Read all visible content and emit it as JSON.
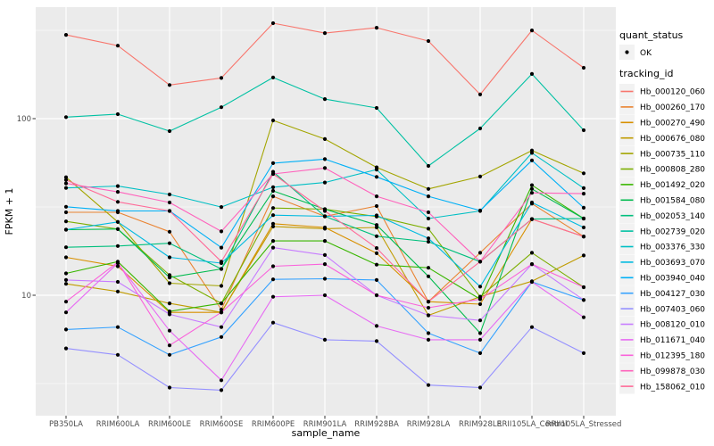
{
  "panel": {
    "background": "#EBEBEB",
    "grid_color": "#FFFFFF",
    "point_color": "#000000",
    "legend_key_fill": "#F2F2F2",
    "tick_color": "#333333",
    "tick_text_color": "#4D4D4D"
  },
  "legend": {
    "quant_status_title": "quant_status",
    "quant_status_items": [
      {
        "label": "OK",
        "marker": "point-icon"
      }
    ],
    "tracking_title": "tracking_id"
  },
  "chart_data": {
    "type": "line",
    "title": "",
    "xlabel": "sample_name",
    "ylabel": "FPKM + 1",
    "y_scale": "log10",
    "y_ticks": [
      100,
      10
    ],
    "y_minor_ticks": [
      316.2,
      31.62,
      3.162
    ],
    "ylim": [
      2.08,
      427
    ],
    "grid": true,
    "legend_position": "right",
    "x_categories": [
      "PB350LA",
      "RRIM600LA",
      "RRIM600LE",
      "RRIM600SE",
      "RRIM600PE",
      "RRIM901LA",
      "RRIM928BA",
      "RRIM928LA",
      "RRIM928LE",
      "RRII105LA_Control",
      "RRII105LA_Stressed"
    ],
    "series": [
      {
        "name": "Hb_000120_060",
        "color": "#F8766D",
        "values": [
          298,
          259,
          155,
          170,
          347,
          305,
          327,
          275,
          137,
          316,
          194
        ]
      },
      {
        "name": "Hb_000260_170",
        "color": "#EA8331",
        "values": [
          29.5,
          29.5,
          22.9,
          8.3,
          36.3,
          28,
          32,
          9.2,
          17.4,
          33,
          21.5
        ]
      },
      {
        "name": "Hb_000270_490",
        "color": "#D89000",
        "values": [
          16.4,
          14.6,
          8.0,
          8.0,
          25.4,
          24.2,
          17.3,
          9.2,
          8.9,
          27,
          21.5
        ]
      },
      {
        "name": "Hb_000676_080",
        "color": "#C09B00",
        "values": [
          11.6,
          10.5,
          9.0,
          8.0,
          24.5,
          23.8,
          24.2,
          7.7,
          9.8,
          12,
          16.8
        ]
      },
      {
        "name": "Hb_000735_110",
        "color": "#A3A500",
        "values": [
          46.6,
          26,
          11.7,
          11.3,
          97.7,
          76.6,
          53,
          40,
          47,
          66,
          49
        ]
      },
      {
        "name": "Hb_000808_280",
        "color": "#7CAE00",
        "values": [
          26.2,
          23.7,
          13.0,
          9.0,
          31.2,
          30.7,
          27.9,
          23.8,
          9.8,
          17.4,
          11.1
        ]
      },
      {
        "name": "Hb_001492_020",
        "color": "#39B600",
        "values": [
          13.3,
          15.5,
          8.1,
          9.0,
          20.3,
          20.3,
          14.9,
          14.3,
          9.5,
          42,
          27.2
        ]
      },
      {
        "name": "Hb_001584_080",
        "color": "#00BB4E",
        "values": [
          23.5,
          23.7,
          12.6,
          14.1,
          39,
          30.7,
          25.0,
          12.8,
          6.1,
          40,
          27.2
        ]
      },
      {
        "name": "Hb_002053_140",
        "color": "#00BF7D",
        "values": [
          18.7,
          19.0,
          19.7,
          14.1,
          50,
          28,
          21.6,
          20.1,
          15.5,
          27,
          27.2
        ]
      },
      {
        "name": "Hb_002739_020",
        "color": "#00C1A3",
        "values": [
          102,
          106,
          85,
          116,
          171,
          129,
          115,
          54,
          88,
          179,
          86
        ]
      },
      {
        "name": "Hb_003376_330",
        "color": "#00BFC4",
        "values": [
          40.5,
          41.5,
          37.2,
          31.6,
          40.9,
          43.5,
          51.5,
          27.2,
          30,
          64,
          40.4
        ]
      },
      {
        "name": "Hb_003693_070",
        "color": "#00BAE0",
        "values": [
          23.5,
          26,
          16.4,
          15.2,
          28.4,
          28,
          28.3,
          21,
          11.2,
          33.5,
          24.2
        ]
      },
      {
        "name": "Hb_003940_040",
        "color": "#00B0F6",
        "values": [
          31.7,
          30,
          30,
          18.6,
          56,
          59,
          46.8,
          36.3,
          30.2,
          58,
          31.3
        ]
      },
      {
        "name": "Hb_004127_030",
        "color": "#35A2FF",
        "values": [
          6.4,
          6.6,
          4.6,
          5.8,
          12.3,
          12.4,
          12.2,
          6.1,
          4.7,
          11.9,
          9.4
        ]
      },
      {
        "name": "Hb_007403_060",
        "color": "#9590FF",
        "values": [
          5.0,
          4.6,
          3.0,
          2.9,
          7.0,
          5.6,
          5.5,
          3.1,
          3.0,
          6.6,
          4.7
        ]
      },
      {
        "name": "Hb_008120_010",
        "color": "#C77CFF",
        "values": [
          12.2,
          11.9,
          7.8,
          6.6,
          18.6,
          16.9,
          10.0,
          7.7,
          7.2,
          15,
          9.4
        ]
      },
      {
        "name": "Hb_011671_040",
        "color": "#E76BF3",
        "values": [
          8.0,
          15.2,
          6.3,
          3.3,
          9.8,
          10.0,
          6.7,
          5.6,
          5.6,
          11.9,
          7.5
        ]
      },
      {
        "name": "Hb_012395_180",
        "color": "#FA62DB",
        "values": [
          9.2,
          15.4,
          5.2,
          8.0,
          14.6,
          15.0,
          10.0,
          8.5,
          9.5,
          15,
          11.1
        ]
      },
      {
        "name": "Hb_099878_030",
        "color": "#FF62BC",
        "values": [
          43,
          38.5,
          33.5,
          23.0,
          48.6,
          52.5,
          36.3,
          29.5,
          15.5,
          38,
          37.6
        ]
      },
      {
        "name": "Hb_158062_010",
        "color": "#FF6A98",
        "values": [
          45,
          33.8,
          30,
          15.5,
          48.6,
          30,
          18.5,
          9.2,
          15.5,
          27,
          21.5
        ]
      }
    ]
  }
}
